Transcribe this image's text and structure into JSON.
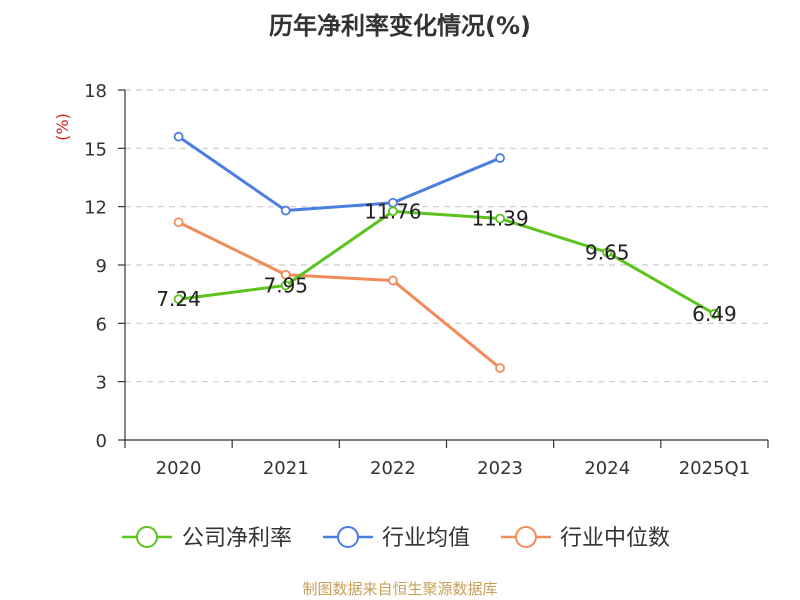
{
  "chart_data": {
    "type": "line",
    "title": "历年净利率变化情况(%)",
    "ylabel": "(%)",
    "xlabel": "",
    "categories": [
      "2020",
      "2021",
      "2022",
      "2023",
      "2024",
      "2025Q1"
    ],
    "ylim": [
      0,
      18
    ],
    "yticks": [
      0,
      3,
      6,
      9,
      12,
      15,
      18
    ],
    "grid": true,
    "legend_position": "bottom",
    "series": [
      {
        "name": "公司净利率",
        "color": "#5cc31f",
        "values": [
          7.24,
          7.95,
          11.76,
          11.39,
          9.65,
          6.49
        ],
        "labels": [
          "7.24",
          "7.95",
          "11.76",
          "11.39",
          "9.65",
          "6.49"
        ]
      },
      {
        "name": "行业均值",
        "color": "#4a7fe0",
        "values": [
          15.6,
          11.8,
          12.2,
          14.5,
          null,
          null
        ]
      },
      {
        "name": "行业中位数",
        "color": "#f28b5b",
        "values": [
          11.2,
          8.5,
          8.2,
          3.7,
          null,
          null
        ]
      }
    ]
  },
  "footer": {
    "source": "制图数据来自恒生聚源数据库"
  }
}
